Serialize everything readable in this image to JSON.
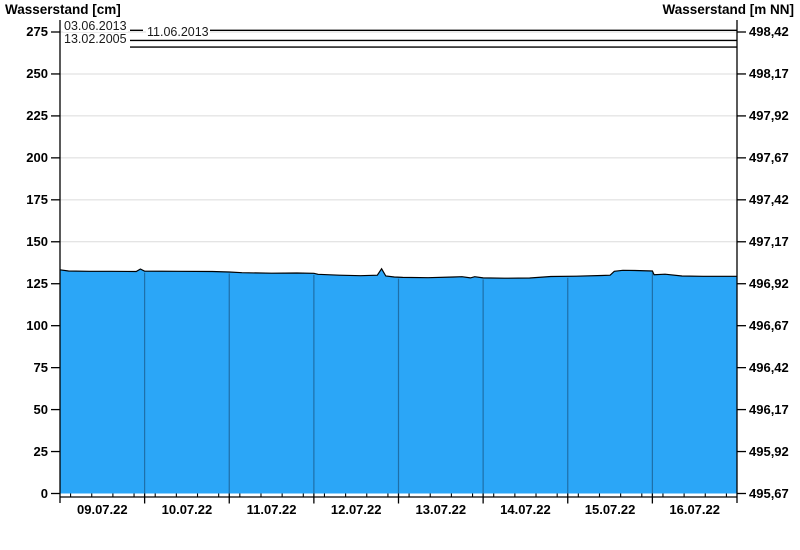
{
  "page": {
    "title_left": "Wasserstand [cm]",
    "title_right": "Wasserstand [m NN]"
  },
  "colors": {
    "water_fill": "#2BA6F7",
    "water_outline": "#000000",
    "day_divider": "#1E6FA8",
    "gridline": "#DBDBDB",
    "axis": "#000000",
    "reference_line": "#000000",
    "background": "#FFFFFF",
    "label_text": "#000000"
  },
  "chart_data": {
    "type": "area",
    "title": "",
    "ylabel_left": "Wasserstand [cm]",
    "ylabel_right": "Wasserstand [m NN]",
    "ylim_cm": [
      0,
      275
    ],
    "grid": "horizontal",
    "legend_position": "none",
    "y_ticks_cm": [
      0,
      25,
      50,
      75,
      100,
      125,
      150,
      175,
      200,
      225,
      250,
      275
    ],
    "y_ticks_mnn": [
      "495,67",
      "495,92",
      "496,17",
      "496,42",
      "496,67",
      "496,92",
      "497,17",
      "497,42",
      "497,67",
      "497,92",
      "498,17",
      "498,42"
    ],
    "x_day_labels": [
      "09.07.22",
      "10.07.22",
      "11.07.22",
      "12.07.22",
      "13.07.22",
      "14.07.22",
      "15.07.22",
      "16.07.22"
    ],
    "x_minor_ticks_per_day": 4,
    "reference_lines": [
      {
        "label": "03.06.2013",
        "value_cm": 276
      },
      {
        "label": "11.06.2013",
        "value_cm": 270
      },
      {
        "label": "13.02.2005",
        "value_cm": 266
      }
    ],
    "points": [
      [
        0.0,
        133.3
      ],
      [
        0.1,
        132.6
      ],
      [
        0.35,
        132.4
      ],
      [
        0.6,
        132.4
      ],
      [
        0.9,
        132.3
      ],
      [
        0.95,
        133.8
      ],
      [
        1.0,
        132.5
      ],
      [
        1.4,
        132.4
      ],
      [
        1.8,
        132.3
      ],
      [
        2.0,
        132.0
      ],
      [
        2.15,
        131.6
      ],
      [
        2.5,
        131.3
      ],
      [
        2.8,
        131.4
      ],
      [
        3.0,
        131.2
      ],
      [
        3.05,
        130.6
      ],
      [
        3.3,
        130.1
      ],
      [
        3.55,
        129.8
      ],
      [
        3.75,
        130.1
      ],
      [
        3.8,
        133.9
      ],
      [
        3.85,
        129.6
      ],
      [
        3.95,
        129.0
      ],
      [
        4.05,
        128.8
      ],
      [
        4.35,
        128.6
      ],
      [
        4.65,
        129.0
      ],
      [
        4.75,
        129.2
      ],
      [
        4.85,
        128.5
      ],
      [
        4.9,
        129.2
      ],
      [
        5.0,
        128.5
      ],
      [
        5.25,
        128.3
      ],
      [
        5.55,
        128.4
      ],
      [
        5.8,
        129.3
      ],
      [
        6.1,
        129.5
      ],
      [
        6.4,
        129.9
      ],
      [
        6.5,
        130.1
      ],
      [
        6.55,
        132.4
      ],
      [
        6.65,
        133.0
      ],
      [
        6.85,
        132.8
      ],
      [
        7.0,
        132.6
      ],
      [
        7.02,
        130.4
      ],
      [
        7.15,
        130.7
      ],
      [
        7.35,
        129.6
      ],
      [
        7.6,
        129.4
      ],
      [
        8.0,
        129.4
      ]
    ]
  }
}
